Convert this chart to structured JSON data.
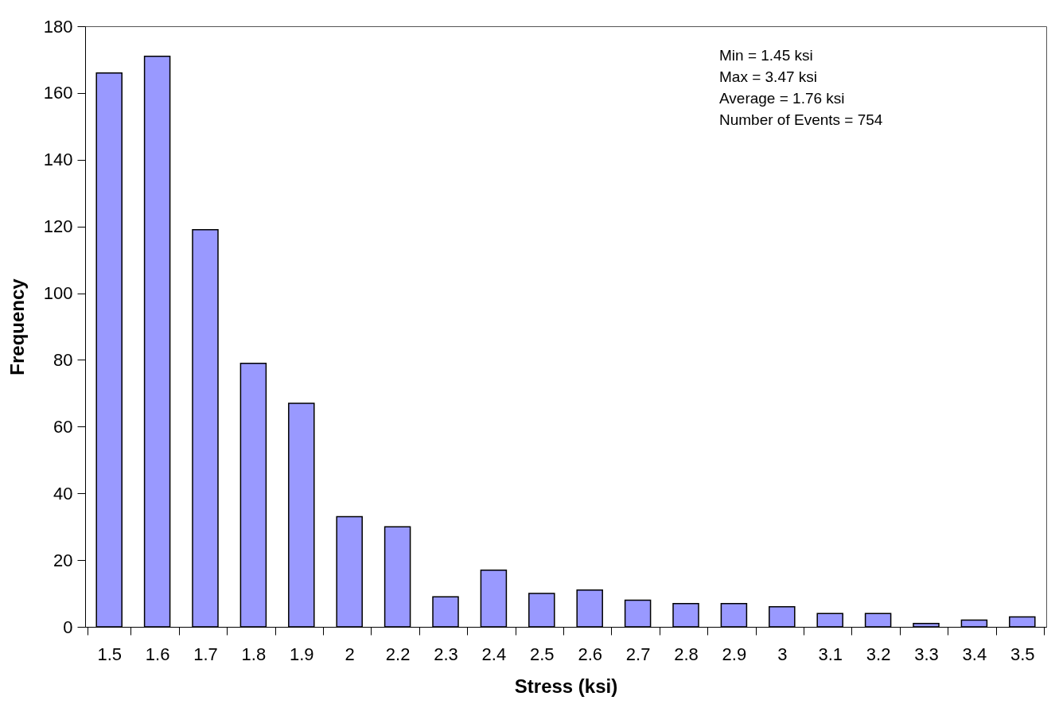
{
  "chart_data": {
    "type": "bar",
    "xlabel": "Stress (ksi)",
    "ylabel": "Frequency",
    "categories": [
      "1.5",
      "1.6",
      "1.7",
      "1.8",
      "1.9",
      "2",
      "2.2",
      "2.3",
      "2.4",
      "2.5",
      "2.6",
      "2.7",
      "2.8",
      "2.9",
      "3",
      "3.1",
      "3.2",
      "3.3",
      "3.4",
      "3.5"
    ],
    "values": [
      166,
      171,
      119,
      79,
      67,
      33,
      30,
      9,
      17,
      10,
      11,
      8,
      7,
      7,
      6,
      4,
      4,
      1,
      2,
      3
    ],
    "color": "#9999ff",
    "ylim": [
      0,
      180
    ],
    "yticks": [
      0,
      20,
      40,
      60,
      80,
      100,
      120,
      140,
      160,
      180
    ],
    "grid": false,
    "annotations": [
      "Min = 1.45 ksi",
      "Max = 3.47 ksi",
      "Average = 1.76 ksi",
      "Number of Events = 754"
    ]
  }
}
